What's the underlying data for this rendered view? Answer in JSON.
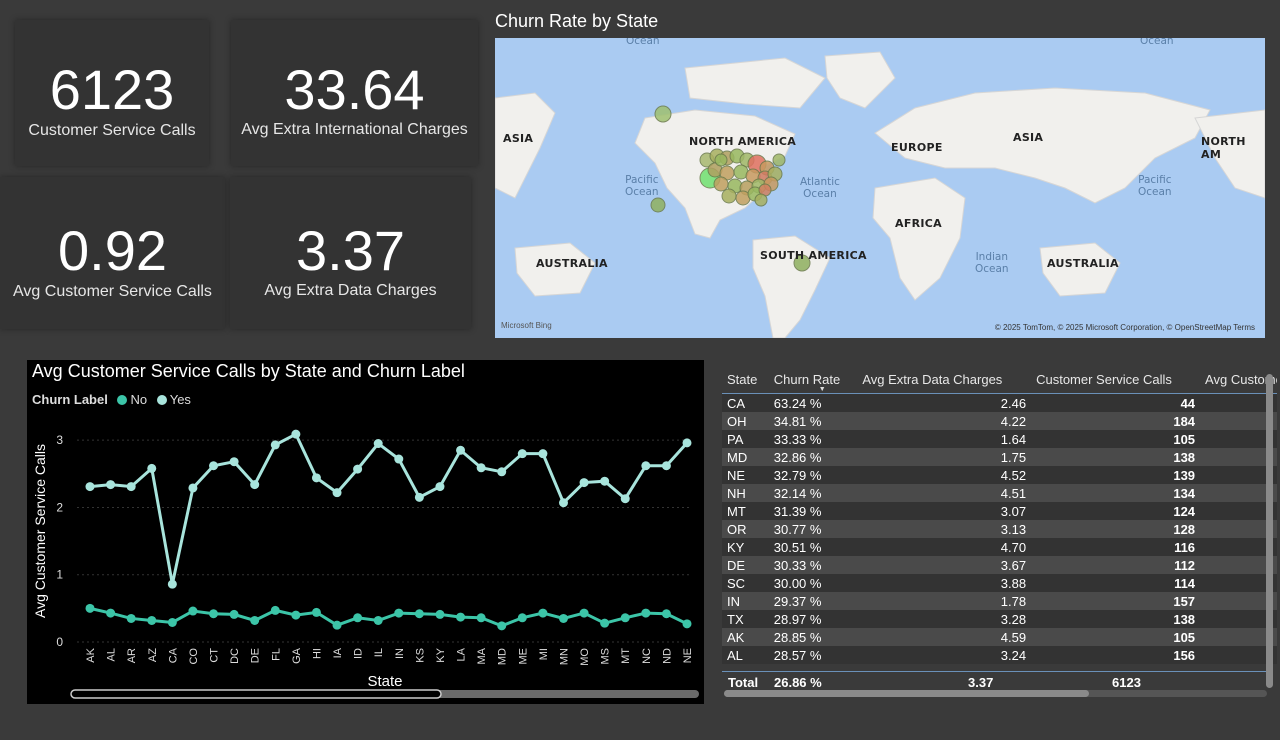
{
  "cards": {
    "customer_service_calls": {
      "value": "6123",
      "label": "Customer Service Calls"
    },
    "avg_extra_international_charges": {
      "value": "33.64",
      "label": "Avg Extra International Charges"
    },
    "avg_customer_service_calls": {
      "value": "0.92",
      "label": "Avg Customer Service Calls"
    },
    "avg_extra_data_charges": {
      "value": "3.37",
      "label": "Avg Extra Data Charges"
    }
  },
  "map": {
    "title": "Churn Rate by State",
    "labels": {
      "asia_left": "ASIA",
      "north_america": "NORTH AMERICA",
      "europe": "EUROPE",
      "asia": "ASIA",
      "north_america_right": "NORTH AM",
      "africa": "AFRICA",
      "south_america": "SOUTH AMERICA",
      "australia_left": "AUSTRALIA",
      "australia_right": "AUSTRALIA"
    },
    "oceans": {
      "pacific_left": "Pacific\nOcean",
      "atlantic": "Atlantic\nOcean",
      "indian": "Indian\nOcean",
      "pacific_right": "Pacific\nOcean",
      "ocean_top_left": "Ocean",
      "ocean_top_right": "Ocean"
    },
    "credit": "© 2025 TomTom, © 2025 Microsoft Corporation, © OpenStreetMap  Terms",
    "logo": "Microsoft Bing"
  },
  "chart": {
    "title": "Avg Customer Service Calls by State and Churn Label",
    "legend_title": "Churn Label",
    "xlabel": "State",
    "ylabel": "Avg Customer Service Calls",
    "colors": {
      "No": "#3cc5a8",
      "Yes": "#a8e4dc"
    }
  },
  "chart_data": {
    "type": "line",
    "title": "Avg Customer Service Calls by State and Churn Label",
    "xlabel": "State",
    "ylabel": "Avg Customer Service Calls",
    "ylim": [
      0,
      3.3
    ],
    "yticks": [
      0,
      1,
      2,
      3
    ],
    "grid": true,
    "legend": "top-left",
    "categories": [
      "AK",
      "AL",
      "AR",
      "AZ",
      "CA",
      "CO",
      "CT",
      "DC",
      "DE",
      "FL",
      "GA",
      "HI",
      "IA",
      "ID",
      "IL",
      "IN",
      "KS",
      "KY",
      "LA",
      "MA",
      "MD",
      "ME",
      "MI",
      "MN",
      "MO",
      "MS",
      "MT",
      "NC",
      "ND",
      "NE"
    ],
    "series": [
      {
        "name": "No",
        "values": [
          0.5,
          0.43,
          0.35,
          0.32,
          0.29,
          0.46,
          0.42,
          0.41,
          0.32,
          0.47,
          0.4,
          0.44,
          0.25,
          0.36,
          0.32,
          0.43,
          0.42,
          0.41,
          0.37,
          0.36,
          0.24,
          0.36,
          0.43,
          0.35,
          0.43,
          0.28,
          0.36,
          0.43,
          0.42,
          0.27
        ]
      },
      {
        "name": "Yes",
        "values": [
          2.31,
          2.34,
          2.31,
          2.58,
          0.86,
          2.29,
          2.62,
          2.68,
          2.34,
          2.93,
          3.09,
          2.44,
          2.22,
          2.57,
          2.95,
          2.72,
          2.15,
          2.31,
          2.85,
          2.59,
          2.53,
          2.8,
          2.8,
          2.07,
          2.37,
          2.39,
          2.13,
          2.62,
          2.62,
          2.96
        ]
      }
    ]
  },
  "table": {
    "headers": [
      "State",
      "Churn Rate",
      "Avg Extra Data Charges",
      "Customer Service Calls",
      "Avg Customer Serv"
    ],
    "rows": [
      [
        "CA",
        "63.24 %",
        "2.46",
        "44"
      ],
      [
        "OH",
        "34.81 %",
        "4.22",
        "184"
      ],
      [
        "PA",
        "33.33 %",
        "1.64",
        "105"
      ],
      [
        "MD",
        "32.86 %",
        "1.75",
        "138"
      ],
      [
        "NE",
        "32.79 %",
        "4.52",
        "139"
      ],
      [
        "NH",
        "32.14 %",
        "4.51",
        "134"
      ],
      [
        "MT",
        "31.39 %",
        "3.07",
        "124"
      ],
      [
        "OR",
        "30.77 %",
        "3.13",
        "128"
      ],
      [
        "KY",
        "30.51 %",
        "4.70",
        "116"
      ],
      [
        "DE",
        "30.33 %",
        "3.67",
        "112"
      ],
      [
        "SC",
        "30.00 %",
        "3.88",
        "114"
      ],
      [
        "IN",
        "29.37 %",
        "1.78",
        "157"
      ],
      [
        "TX",
        "28.97 %",
        "3.28",
        "138"
      ],
      [
        "AK",
        "28.85 %",
        "4.59",
        "105"
      ],
      [
        "AL",
        "28.57 %",
        "3.24",
        "156"
      ]
    ],
    "total": [
      "Total",
      "26.86 %",
      "3.37",
      "6123"
    ]
  }
}
